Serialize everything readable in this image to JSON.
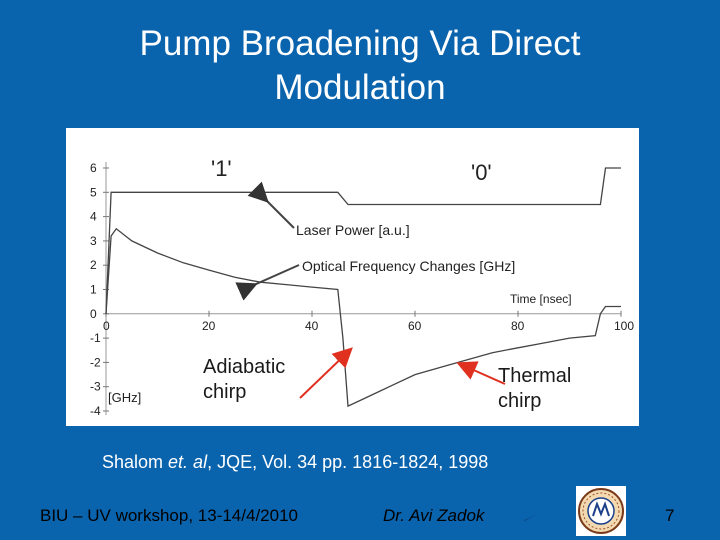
{
  "slide": {
    "title_line1": "Pump Broadening Via Direct",
    "title_line2": "Modulation",
    "citation_prefix": "Shalom ",
    "citation_etal": "et. al",
    "citation_suffix": ", JQE, Vol. 34 pp. 1816-1824, 1998",
    "footer_left": "BIU – UV workshop, 13-14/4/2010",
    "footer_author": "Dr. Avi Zadok",
    "page_number": "7",
    "logo_text": "Bar-Ilan University"
  },
  "annotations": {
    "adiabatic_line1": "Adiabatic",
    "adiabatic_line2": "chirp",
    "thermal_line1": "Thermal",
    "thermal_line2": "chirp"
  },
  "chart_data": {
    "type": "line",
    "x_tick_labels": [
      "0",
      "20",
      "40",
      "60",
      "80",
      "100"
    ],
    "y_tick_labels": [
      "6",
      "5",
      "4",
      "3",
      "2",
      "1",
      "0",
      "-1",
      "-2",
      "-3",
      "-4"
    ],
    "xlim": [
      0,
      100
    ],
    "ylim": [
      -4,
      6
    ],
    "y_unit_label": "[GHz]",
    "x_unit_label": "Time [nsec]",
    "bit_labels": [
      "'1'",
      "'0'"
    ],
    "series": [
      {
        "name": "Laser Power [a.u.]",
        "x": [
          0,
          1,
          45,
          47,
          96,
          97,
          100
        ],
        "y": [
          0,
          5,
          5,
          4.5,
          4.5,
          6,
          6
        ]
      },
      {
        "name": "Optical Frequency Changes [GHz]",
        "x": [
          0,
          1,
          2,
          5,
          10,
          15,
          20,
          25,
          30,
          35,
          40,
          45,
          46,
          47,
          50,
          55,
          60,
          65,
          70,
          75,
          80,
          85,
          90,
          95,
          96,
          97,
          100
        ],
        "y": [
          0,
          3.2,
          3.5,
          3.0,
          2.5,
          2.1,
          1.8,
          1.5,
          1.3,
          1.2,
          1.1,
          1.0,
          -1.0,
          -3.8,
          -3.5,
          -3.0,
          -2.5,
          -2.2,
          -1.9,
          -1.6,
          -1.4,
          -1.2,
          -1.0,
          -0.9,
          0,
          0.3,
          0.3
        ]
      }
    ]
  }
}
